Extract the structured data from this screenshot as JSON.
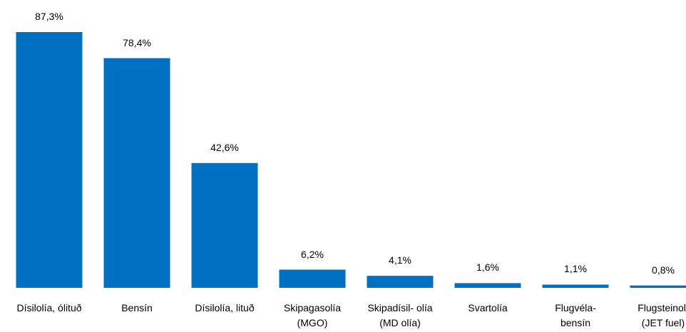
{
  "chart_data": {
    "type": "bar",
    "categories": [
      "Dísilolía, ólituð",
      "Bensín",
      "Dísilolía, lituð",
      "Skipagasolía\n(MGO)",
      "Skipadísil- olía\n(MD olía)",
      "Svartolía",
      "Flugvéla-\nbensín",
      "Flugsteinolí\n(JET fuel)"
    ],
    "values": [
      87.3,
      78.4,
      42.6,
      6.2,
      4.1,
      1.6,
      1.1,
      0.8
    ],
    "value_labels": [
      "87,3%",
      "78,4%",
      "42,6%",
      "6,2%",
      "4,1%",
      "1,6%",
      "1,1%",
      "0,8%"
    ],
    "color": "#0070c0"
  }
}
